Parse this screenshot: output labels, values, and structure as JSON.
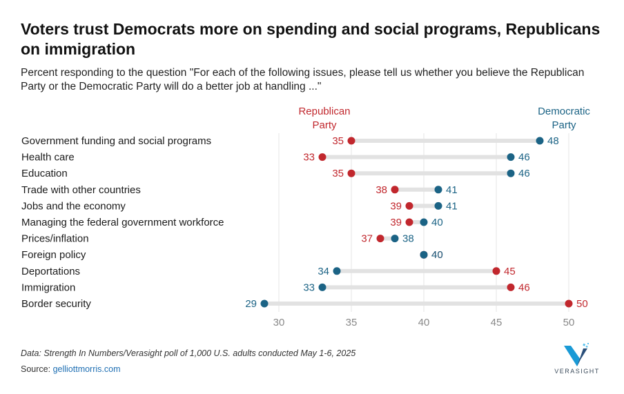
{
  "title": "Voters trust Democrats more on spending and social programs, Republicans on immigration",
  "subtitle": "Percent responding to the question \"For each of the following issues, please tell us whether you believe the Republican Party or the Democratic Party will do a better job at handling ...\"",
  "footer": {
    "note": "Data: Strength In Numbers/Verasight poll of 1,000 U.S. adults conducted May 1-6, 2025",
    "source_label": "Source: ",
    "source_link": "gelliottmorris.com"
  },
  "logo": {
    "text": "VERASIGHT",
    "icon": "verasight-v-logo"
  },
  "colors": {
    "republican": "#c1272d",
    "democratic": "#1b6385",
    "bar": "#e2e2e2",
    "grid": "#e6e6e6",
    "axis_text": "#888888"
  },
  "chart_data": {
    "type": "dot-range",
    "categories": [
      "Government funding and social programs",
      "Health care",
      "Education",
      "Trade with other countries",
      "Jobs and the economy",
      "Managing the federal government workforce",
      "Prices/inflation",
      "Foreign policy",
      "Deportations",
      "Immigration",
      "Border security"
    ],
    "series": [
      {
        "name": "Republican Party",
        "name_lines": [
          "Republican",
          "Party"
        ],
        "color": "#c1272d",
        "values": [
          35,
          33,
          35,
          38,
          39,
          39,
          37,
          40,
          45,
          46,
          50
        ]
      },
      {
        "name": "Democratic Party",
        "name_lines": [
          "Democratic",
          "Party"
        ],
        "color": "#1b6385",
        "values": [
          48,
          46,
          46,
          41,
          41,
          40,
          38,
          40,
          34,
          33,
          29
        ]
      }
    ],
    "xlim": [
      28,
      51
    ],
    "xticks": [
      30,
      35,
      40,
      45,
      50
    ],
    "grid": true,
    "legend": "direct-labels-top"
  }
}
